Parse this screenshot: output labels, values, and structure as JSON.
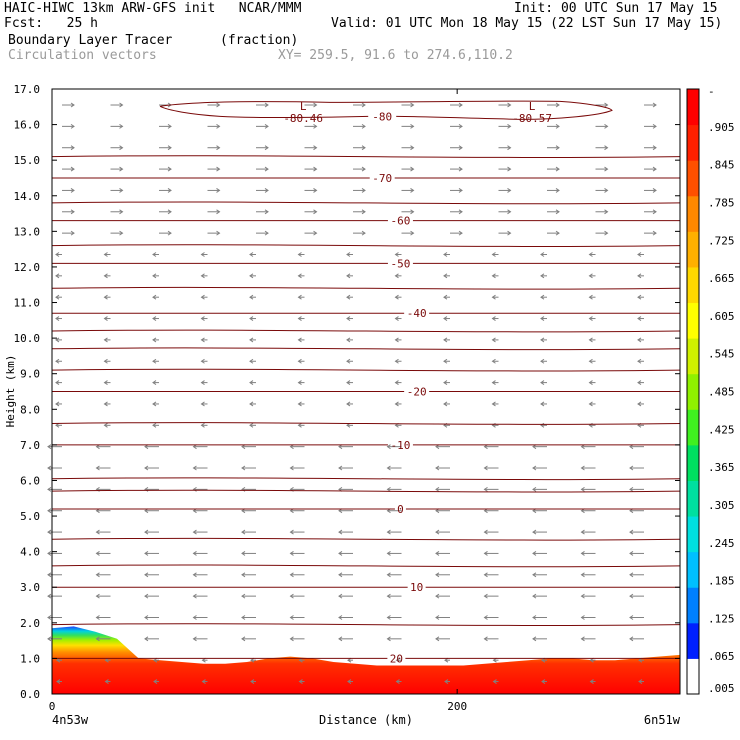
{
  "header": {
    "line1_left": "HAIC-HIWC 13km ARW-GFS init   NCAR/MMM",
    "line1_right": "Init: 00 UTC Sun 17 May 15",
    "line2_left": "Fcst:   25 h",
    "line2_right": "Valid: 01 UTC Mon 18 May 15 (22 LST Sun 17 May 15)",
    "line3_left": "Boundary Layer Tracer",
    "line3_units": "(fraction)",
    "line4_left": "Circulation vectors",
    "line4_right": "XY= 259.5, 91.6 to 274.6,110.2"
  },
  "colors": {
    "contour": "#7a0a0a",
    "vector": "#808080",
    "scale": [
      "#ffffff",
      "#0020ff",
      "#0080ff",
      "#00c0ff",
      "#00e0e0",
      "#00e0a0",
      "#00e060",
      "#40f020",
      "#90f000",
      "#d0f000",
      "#ffff00",
      "#ffd800",
      "#ffb000",
      "#ff8800",
      "#ff5000",
      "#ff2000",
      "#ff0000"
    ]
  },
  "chart_data": {
    "type": "cross-section",
    "xlabel": "Distance (km)",
    "ylabel": "Height (km)",
    "xlim": [
      0,
      310
    ],
    "ylim": [
      0,
      17
    ],
    "xticks": [
      {
        "value": 0,
        "label": "0"
      },
      {
        "value": 200,
        "label": "200"
      }
    ],
    "xends": {
      "left": "4n53w",
      "right": "6n51w"
    },
    "yticks": [
      "0.0",
      "1.0",
      "2.0",
      "3.0",
      "4.0",
      "5.0",
      "6.0",
      "7.0",
      "8.0",
      "9.0",
      "10.0",
      "11.0",
      "12.0",
      "13.0",
      "14.0",
      "15.0",
      "16.0",
      "17.0"
    ],
    "tracer_top_km": [
      1.85,
      1.9,
      1.75,
      1.55,
      1.0,
      0.95,
      0.9,
      0.85,
      0.85,
      0.9,
      1.0,
      1.05,
      1.0,
      0.9,
      0.85,
      0.8,
      0.8,
      0.8,
      0.8,
      0.8,
      0.85,
      0.9,
      0.95,
      1.0,
      1.0,
      0.95,
      0.95,
      1.0,
      1.05,
      1.1
    ],
    "temperature_contours": [
      {
        "label": "20",
        "height_km": 1.0,
        "label_x_km": 170
      },
      {
        "label": "10",
        "height_km": 3.0,
        "label_x_km": 180
      },
      {
        "label": "0",
        "height_km": 5.2,
        "label_x_km": 172
      },
      {
        "label": "-10",
        "height_km": 7.0,
        "label_x_km": 172
      },
      {
        "label": "-20",
        "height_km": 8.5,
        "label_x_km": 180
      },
      {
        "label": "-40",
        "height_km": 10.7,
        "label_x_km": 180
      },
      {
        "label": "-50",
        "height_km": 12.1,
        "label_x_km": 172
      },
      {
        "label": "-60",
        "height_km": 13.3,
        "label_x_km": 172
      },
      {
        "label": "-70",
        "height_km": 14.5,
        "label_x_km": 163
      },
      {
        "label": "-80",
        "height_km": 16.4,
        "label_x_km": 163
      }
    ],
    "minima": [
      {
        "marker": "L",
        "value": "-80.46",
        "x_km": 124,
        "height_km": 16.35
      },
      {
        "marker": "L",
        "value": "-80.57",
        "x_km": 237,
        "height_km": 16.35
      }
    ],
    "colorbar": {
      "labels": [
        "-",
        ".905",
        ".845",
        ".785",
        ".725",
        ".665",
        ".605",
        ".545",
        ".485",
        ".425",
        ".365",
        ".305",
        ".245",
        ".185",
        ".125",
        ".065",
        ".005"
      ]
    }
  }
}
